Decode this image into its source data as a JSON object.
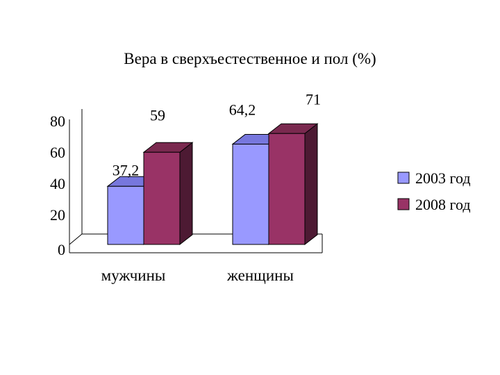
{
  "chart_data": {
    "type": "bar",
    "title": "Вера в сверхъестественное и пол (%)",
    "categories": [
      "мужчины",
      "женщины"
    ],
    "series": [
      {
        "name": "2003 год",
        "values": [
          37.2,
          64.2
        ],
        "labels": [
          "37,2",
          "64,2"
        ],
        "color": "#9999FF",
        "top_color": "#7777DD",
        "side_color": "#5555AA"
      },
      {
        "name": "2008 год",
        "values": [
          59,
          71
        ],
        "labels": [
          "59",
          "71"
        ],
        "color": "#993366",
        "top_color": "#7A294F",
        "side_color": "#4D1A33"
      }
    ],
    "yticks": [
      "0",
      "20",
      "40",
      "60",
      "80"
    ],
    "ylim": [
      0,
      80
    ],
    "grid": false,
    "legend": "right",
    "three_d": true
  }
}
